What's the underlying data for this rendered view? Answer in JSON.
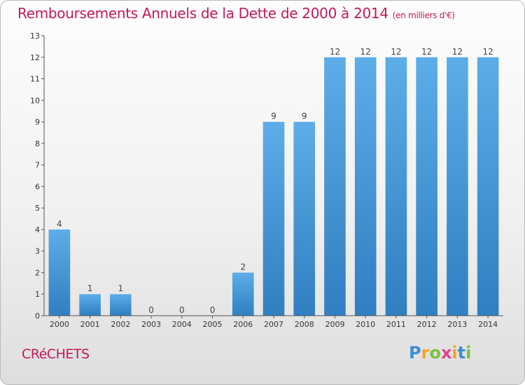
{
  "header": {
    "title": "Remboursements Annuels de la Dette de 2000 à 2014",
    "unit": "(en milliers d'€)"
  },
  "footer": {
    "commune": "CRéCHETS",
    "logo": {
      "letters": [
        {
          "char": "P",
          "color": "#3a8fd6"
        },
        {
          "char": "r",
          "color": "#f5a623"
        },
        {
          "char": "o",
          "color": "#7cbf3c"
        },
        {
          "char": "x",
          "color": "#e83e8c"
        },
        {
          "char": "i",
          "color": "#f5a623"
        },
        {
          "char": "t",
          "color": "#3a8fd6"
        },
        {
          "char": "i",
          "color": "#7cbf3c"
        }
      ]
    }
  },
  "chart_data": {
    "type": "bar",
    "categories": [
      "2000",
      "2001",
      "2002",
      "2003",
      "2004",
      "2005",
      "2006",
      "2007",
      "2008",
      "2009",
      "2010",
      "2011",
      "2012",
      "2013",
      "2014"
    ],
    "values": [
      4,
      1,
      1,
      0,
      0,
      0,
      2,
      9,
      9,
      12,
      12,
      12,
      12,
      12,
      12
    ],
    "ylim": [
      0,
      13
    ],
    "yticks": [
      0,
      1,
      2,
      3,
      4,
      5,
      6,
      7,
      8,
      9,
      10,
      11,
      12,
      13
    ],
    "grid": false,
    "data_labels": true,
    "colors": {
      "bar_light": "#5dade8",
      "bar_dark": "#2f7fc1",
      "axis": "#555555",
      "label": "#444444"
    }
  }
}
